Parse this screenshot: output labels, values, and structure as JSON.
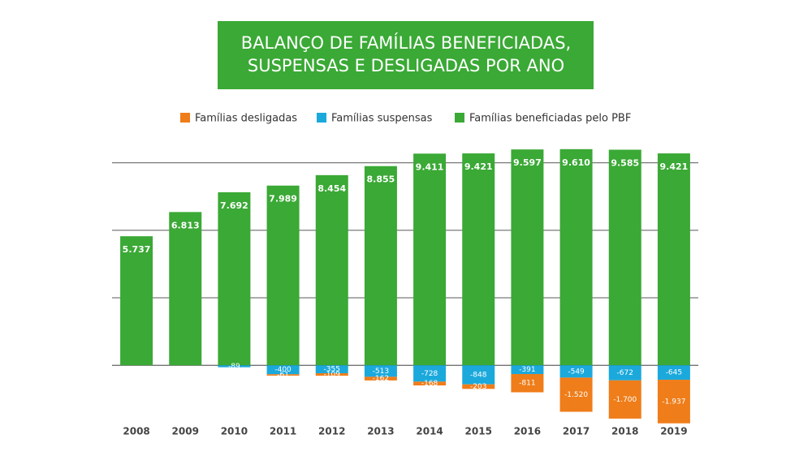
{
  "chart_data": {
    "type": "bar",
    "stacked": true,
    "title": [
      "BALANÇO DE FAMÍLIAS BENEFICIADAS,",
      "SUSPENSAS E DESLIGADAS POR ANO"
    ],
    "categories": [
      "2008",
      "2009",
      "2010",
      "2011",
      "2012",
      "2013",
      "2014",
      "2015",
      "2016",
      "2017",
      "2018",
      "2019"
    ],
    "series": [
      {
        "name": "Famílias desligadas",
        "color": "#ef7d1a",
        "values": [
          null,
          null,
          null,
          -61,
          -109,
          -162,
          -168,
          -203,
          -811,
          -1520,
          -1700,
          -1937
        ],
        "value_labels": [
          null,
          null,
          null,
          "-61",
          "-109",
          "-162",
          "-168",
          "-203",
          "-811",
          "-1.520",
          "-1.700",
          "-1.937"
        ]
      },
      {
        "name": "Famílias suspensas",
        "color": "#1ba9dc",
        "values": [
          null,
          null,
          -89,
          -400,
          -355,
          -513,
          -728,
          -848,
          -391,
          -549,
          -672,
          -645
        ],
        "value_labels": [
          null,
          null,
          "-89",
          "-400",
          "-355",
          "-513",
          "-728",
          "-848",
          "-391",
          "-549",
          "-672",
          "-645"
        ]
      },
      {
        "name": "Famílias beneficiadas pelo PBF",
        "color": "#3aa935",
        "values": [
          5737,
          6813,
          7692,
          7989,
          8454,
          8855,
          9411,
          9421,
          9597,
          9610,
          9585,
          9421
        ],
        "value_labels": [
          "5.737",
          "6.813",
          "7.692",
          "7.989",
          "8.454",
          "8.855",
          "9.411",
          "9.421",
          "9.597",
          "9.610",
          "9.585",
          "9.421"
        ]
      }
    ],
    "ylim": [
      -2700,
      10000
    ],
    "yticks": [
      0,
      3000,
      6000,
      9000
    ],
    "grid": true
  }
}
